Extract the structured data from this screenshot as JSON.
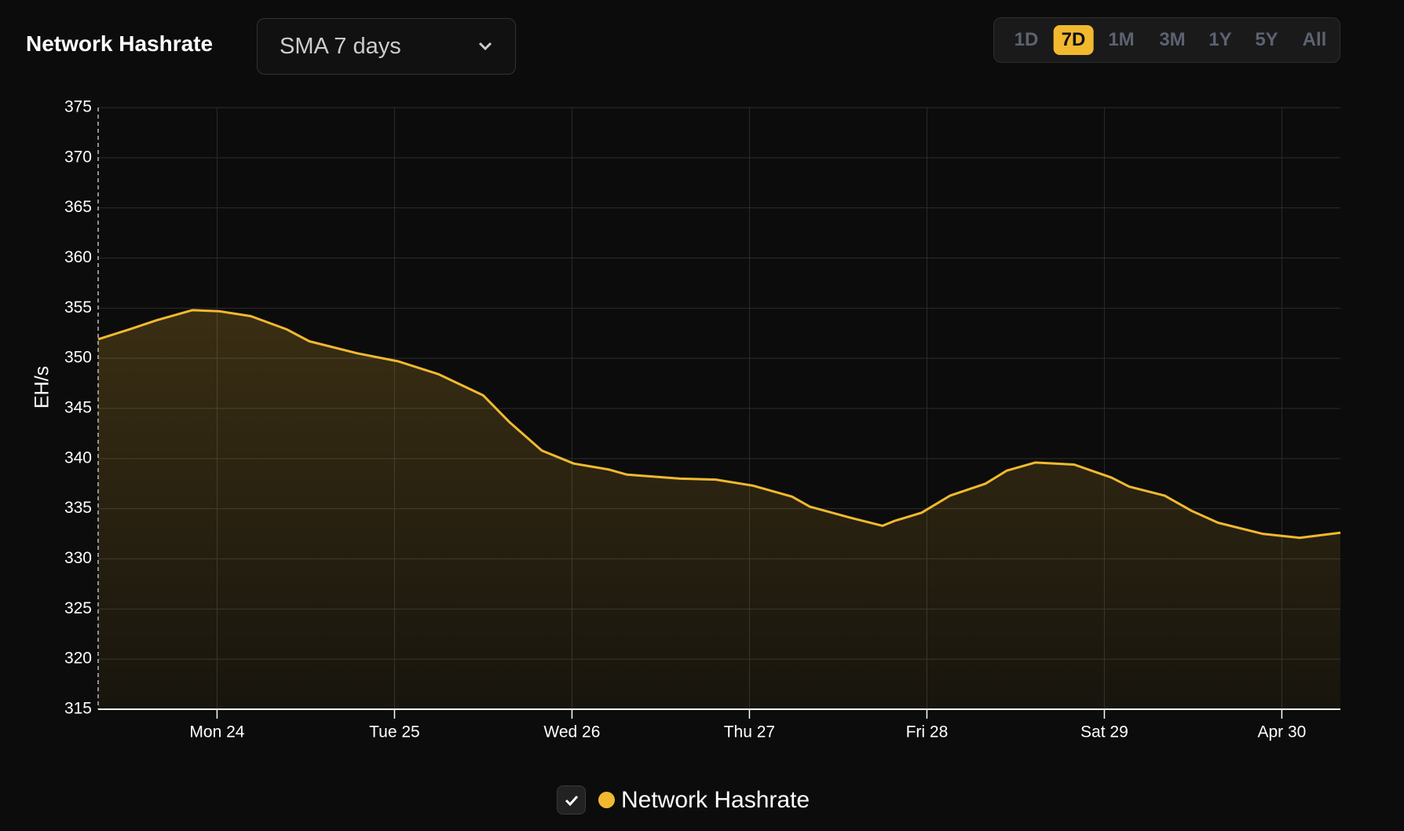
{
  "header": {
    "title": "Network Hashrate",
    "dropdown": "SMA 7 days",
    "ranges": [
      "1D",
      "7D",
      "1M",
      "3M",
      "1Y",
      "5Y",
      "All"
    ],
    "active_range": 1
  },
  "chart_data": {
    "type": "line",
    "y_label": "EH/s",
    "x": [
      23.33,
      23.51,
      23.66,
      23.86,
      24.01,
      24.19,
      24.39,
      24.52,
      24.79,
      25.02,
      25.25,
      25.5,
      25.65,
      25.83,
      26.01,
      26.21,
      26.31,
      26.61,
      26.81,
      27.02,
      27.24,
      27.34,
      27.57,
      27.75,
      27.82,
      27.97,
      28.13,
      28.33,
      28.45,
      28.61,
      28.83,
      29.04,
      29.14,
      29.34,
      29.49,
      29.64,
      29.89,
      30.1,
      30.33
    ],
    "series": [
      {
        "name": "Network Hashrate",
        "color": "#f2b92f",
        "values": [
          351.9,
          352.9,
          353.8,
          354.8,
          354.7,
          354.2,
          352.9,
          351.7,
          350.5,
          349.7,
          348.4,
          346.3,
          343.6,
          340.8,
          339.5,
          338.9,
          338.4,
          338.0,
          337.9,
          337.3,
          336.2,
          335.2,
          334.1,
          333.3,
          333.8,
          334.6,
          336.3,
          337.5,
          338.8,
          339.6,
          339.4,
          338.1,
          337.2,
          336.3,
          334.8,
          333.6,
          332.5,
          332.1,
          332.6
        ]
      }
    ],
    "xlim": [
      23.33,
      30.33
    ],
    "xticks": [
      {
        "value": 24,
        "label": "Mon 24"
      },
      {
        "value": 25,
        "label": "Tue 25"
      },
      {
        "value": 26,
        "label": "Wed 26"
      },
      {
        "value": 27,
        "label": "Thu 27"
      },
      {
        "value": 28,
        "label": "Fri 28"
      },
      {
        "value": 29,
        "label": "Sat 29"
      },
      {
        "value": 30,
        "label": "Apr 30"
      }
    ],
    "ylim": [
      315,
      375
    ],
    "yticks": [
      315,
      320,
      325,
      330,
      335,
      340,
      345,
      350,
      355,
      360,
      365,
      370,
      375
    ],
    "grid": true
  }
}
